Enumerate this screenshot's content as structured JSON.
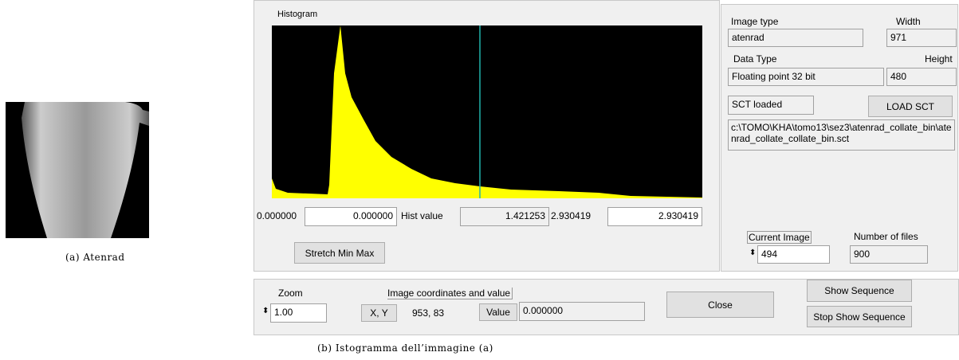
{
  "panel_a": {
    "caption": "(a) Atenrad"
  },
  "panel_b": {
    "caption": "(b) Istogramma dell’immagine (a)"
  },
  "histogram": {
    "title": "Histogram",
    "min_label": "0.000000",
    "min_field": "0.000000",
    "hist_value_label": "Hist value",
    "hist_value": "1.421253",
    "max_label": "2.930419",
    "max_field": "2.930419",
    "stretch_button": "Stretch Min Max"
  },
  "info": {
    "image_type_label": "Image type",
    "width_label": "Width",
    "image_type": "atenrad",
    "width": "971",
    "data_type_label": "Data Type",
    "height_label": "Height",
    "data_type": "Floating point 32 bit",
    "height": "480",
    "sct_loaded": "SCT loaded",
    "load_sct_button": "LOAD SCT",
    "sct_path": "c:\\TOMO\\KHA\\tomo13\\sez3\\atenrad_collate_bin\\atenrad_collate_collate_bin.sct",
    "current_image_label": "Current Image",
    "number_of_files_label": "Number of files",
    "current_image": "494",
    "number_of_files": "900"
  },
  "bottom": {
    "zoom_label": "Zoom",
    "zoom": "1.00",
    "coords_label": "Image coordinates and value",
    "xy_button": "X, Y",
    "coords": "953,  83",
    "value_button": "Value",
    "value": "0.000000",
    "close_button": "Close",
    "show_sequence_button": "Show Sequence",
    "stop_sequence_button": "Stop Show Sequence"
  }
}
